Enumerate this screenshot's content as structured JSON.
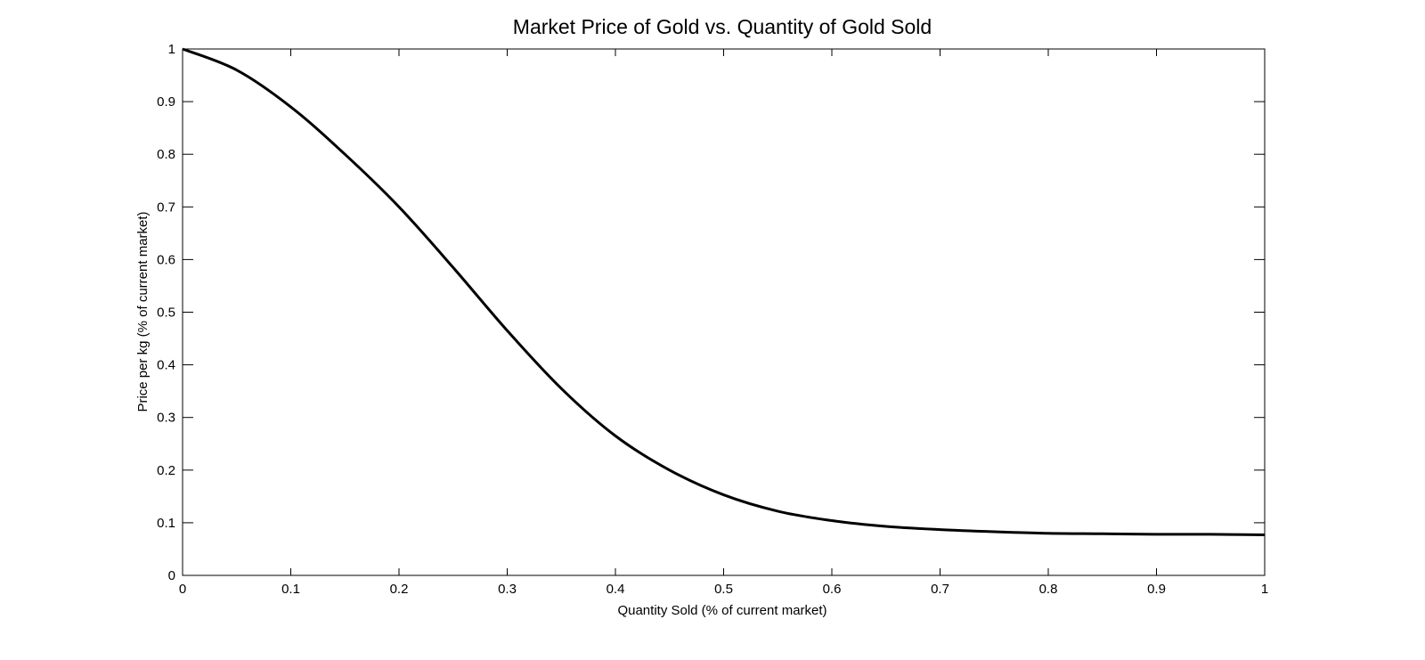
{
  "chart_data": {
    "type": "line",
    "title": "Market Price of Gold vs. Quantity of Gold Sold",
    "xlabel": "Quantity Sold (% of current market)",
    "ylabel": "Price per kg (% of current market)",
    "xlim": [
      0,
      1
    ],
    "ylim": [
      0,
      1
    ],
    "grid": false,
    "legend": "none",
    "x_ticks": [
      "0",
      "0.1",
      "0.2",
      "0.3",
      "0.4",
      "0.5",
      "0.6",
      "0.7",
      "0.8",
      "0.9",
      "1"
    ],
    "y_ticks": [
      "0",
      "0.1",
      "0.2",
      "0.3",
      "0.4",
      "0.5",
      "0.6",
      "0.7",
      "0.8",
      "0.9",
      "1"
    ],
    "colors": {
      "line": "#000000",
      "axes": "#000000",
      "background": "#ffffff"
    },
    "series": [
      {
        "x": [
          0,
          0.05,
          0.1,
          0.15,
          0.2,
          0.25,
          0.3,
          0.35,
          0.4,
          0.45,
          0.5,
          0.55,
          0.6,
          0.65,
          0.7,
          0.75,
          0.8,
          0.85,
          0.9,
          0.95,
          1
        ],
        "y": [
          1,
          0.96,
          0.89,
          0.8,
          0.7,
          0.585,
          0.465,
          0.355,
          0.265,
          0.2,
          0.153,
          0.122,
          0.104,
          0.093,
          0.087,
          0.083,
          0.08,
          0.079,
          0.078,
          0.078,
          0.077
        ]
      }
    ]
  }
}
